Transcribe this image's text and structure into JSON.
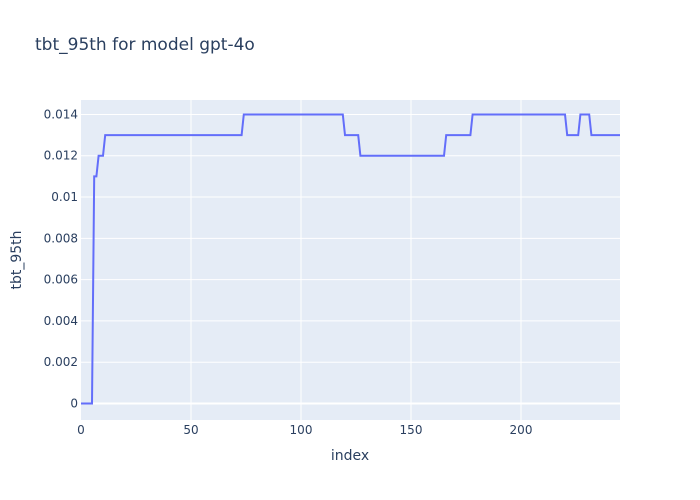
{
  "chart_data": {
    "type": "line",
    "title": "tbt_95th for model gpt-4o",
    "xlabel": "index",
    "ylabel": "tbt_95th",
    "xlim": [
      0,
      245
    ],
    "ylim": [
      -0.0008,
      0.0147
    ],
    "grid": true,
    "legend": "none",
    "x_ticks": [
      0,
      50,
      100,
      150,
      200
    ],
    "x_tick_labels": [
      "0",
      "50",
      "100",
      "150",
      "200"
    ],
    "y_ticks": [
      0,
      0.002,
      0.004,
      0.006,
      0.008,
      0.01,
      0.012,
      0.014
    ],
    "y_tick_labels": [
      "0",
      "0.002",
      "0.004",
      "0.006",
      "0.008",
      "0.01",
      "0.012",
      "0.014"
    ],
    "colors": {
      "line": "#636efa",
      "plot_bg": "#e5ecf6"
    },
    "series": [
      {
        "x": [
          0,
          5,
          6,
          7,
          8,
          9,
          10,
          11,
          73,
          74,
          119,
          120,
          126,
          127,
          165,
          166,
          177,
          178,
          220,
          221,
          226,
          227,
          231,
          232,
          245
        ],
        "y": [
          0,
          0,
          0.011,
          0.011,
          0.012,
          0.012,
          0.012,
          0.013,
          0.013,
          0.014,
          0.014,
          0.013,
          0.013,
          0.012,
          0.012,
          0.013,
          0.013,
          0.014,
          0.014,
          0.013,
          0.013,
          0.014,
          0.014,
          0.013,
          0.013
        ]
      }
    ]
  }
}
